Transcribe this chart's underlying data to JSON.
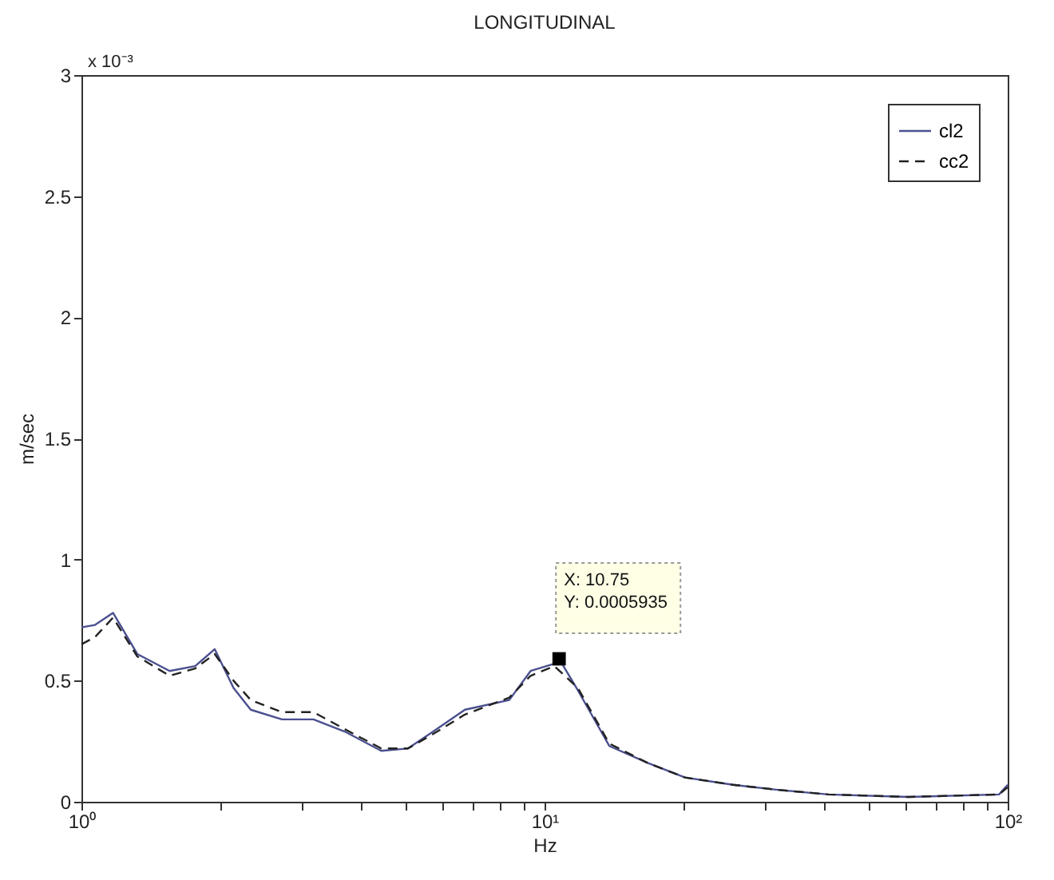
{
  "chart_data": {
    "type": "line",
    "title": "LONGITUDINAL",
    "xlabel": "Hz",
    "ylabel": "m/sec",
    "log": "x",
    "legend": "top right",
    "xlim": [
      1,
      100
    ],
    "ylim": [
      0,
      3
    ],
    "xticks": [
      {
        "value": 1,
        "label": "10⁰"
      },
      {
        "value": 2,
        "label": null
      },
      {
        "value": 3,
        "label": null
      },
      {
        "value": 4,
        "label": null
      },
      {
        "value": 5,
        "label": null
      },
      {
        "value": 6,
        "label": null
      },
      {
        "value": 7,
        "label": null
      },
      {
        "value": 8,
        "label": null
      },
      {
        "value": 9,
        "label": null
      },
      {
        "value": 10,
        "label": "10¹"
      },
      {
        "value": 20,
        "label": null
      },
      {
        "value": 30,
        "label": null
      },
      {
        "value": 40,
        "label": null
      },
      {
        "value": 50,
        "label": null
      },
      {
        "value": 60,
        "label": null
      },
      {
        "value": 70,
        "label": null
      },
      {
        "value": 80,
        "label": null
      },
      {
        "value": 90,
        "label": null
      },
      {
        "value": 100,
        "label": "10²"
      }
    ],
    "yticks": [
      0,
      0.5,
      1,
      1.5,
      2,
      2.5,
      3
    ],
    "series": [
      {
        "name": "cl2",
        "color": "#4a4f8f",
        "line_style": "solid",
        "x": [
          1,
          1.07,
          1.17,
          1.32,
          1.55,
          1.76,
          1.94,
          2.13,
          2.32,
          2.71,
          3.17,
          3.7,
          4.44,
          5.07,
          5.75,
          6.73,
          8.39,
          9.33,
          10.5,
          10.75,
          11.8,
          13.8,
          16.7,
          20.1,
          25.5,
          31.6,
          41,
          61,
          95.8,
          100
        ],
        "values": [
          0.72,
          0.73,
          0.78,
          0.61,
          0.54,
          0.56,
          0.63,
          0.47,
          0.38,
          0.34,
          0.34,
          0.29,
          0.21,
          0.22,
          0.29,
          0.38,
          0.42,
          0.54,
          0.57,
          0.59,
          0.46,
          0.23,
          0.16,
          0.1,
          0.07,
          0.05,
          0.03,
          0.02,
          0.03,
          0.07
        ]
      },
      {
        "name": "cc2",
        "color": "#222222",
        "line_style": "dashed",
        "x": [
          1,
          1.07,
          1.17,
          1.32,
          1.55,
          1.76,
          1.94,
          2.13,
          2.32,
          2.71,
          3.17,
          3.7,
          4.44,
          5.07,
          5.75,
          6.73,
          8.39,
          9.33,
          10.5,
          11.8,
          13.8,
          16.7,
          20.1,
          25.5,
          31.6,
          41,
          61,
          95.8,
          100
        ],
        "values": [
          0.65,
          0.68,
          0.76,
          0.6,
          0.52,
          0.55,
          0.61,
          0.5,
          0.42,
          0.37,
          0.37,
          0.3,
          0.22,
          0.22,
          0.28,
          0.36,
          0.43,
          0.52,
          0.56,
          0.47,
          0.24,
          0.16,
          0.1,
          0.07,
          0.05,
          0.03,
          0.02,
          0.03,
          0.06
        ]
      }
    ],
    "annotations": [
      "x 10⁻³",
      {
        "text": "X: 10.75\nY: 0.0005935",
        "x": 10.75,
        "y": 0.59
      }
    ]
  }
}
